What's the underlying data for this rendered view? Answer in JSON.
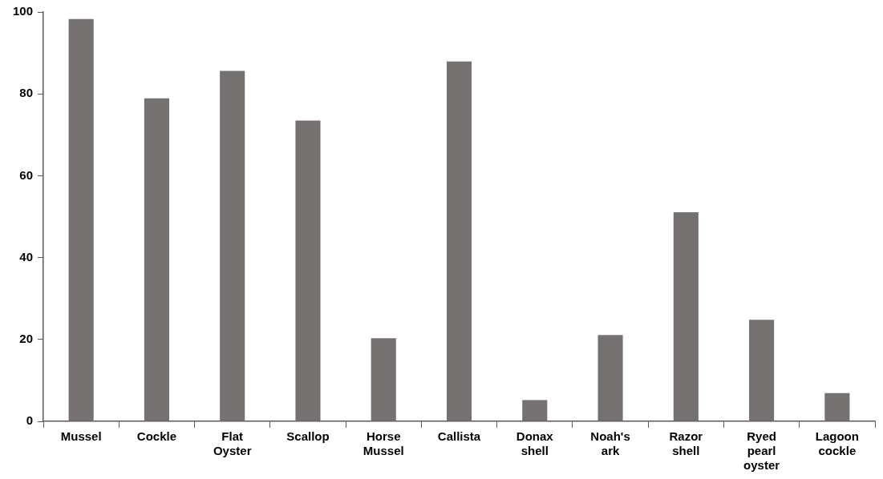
{
  "chart_data": {
    "type": "bar",
    "categories": [
      "Mussel",
      "Cockle",
      "Flat Oyster",
      "Scallop",
      "Horse Mussel",
      "Callista",
      "Donax shell",
      "Noah's ark",
      "Razor shell",
      "Ryed pearl oyster",
      "Lagoon cockle"
    ],
    "values": [
      98.3,
      78.9,
      85.6,
      73.5,
      20.3,
      87.9,
      5.2,
      21.1,
      51.1,
      24.8,
      6.9
    ],
    "color": "#767171",
    "ylim": [
      0,
      100
    ],
    "yticks": [
      0,
      20,
      40,
      60,
      80,
      100
    ],
    "grid": false,
    "legend": false
  }
}
